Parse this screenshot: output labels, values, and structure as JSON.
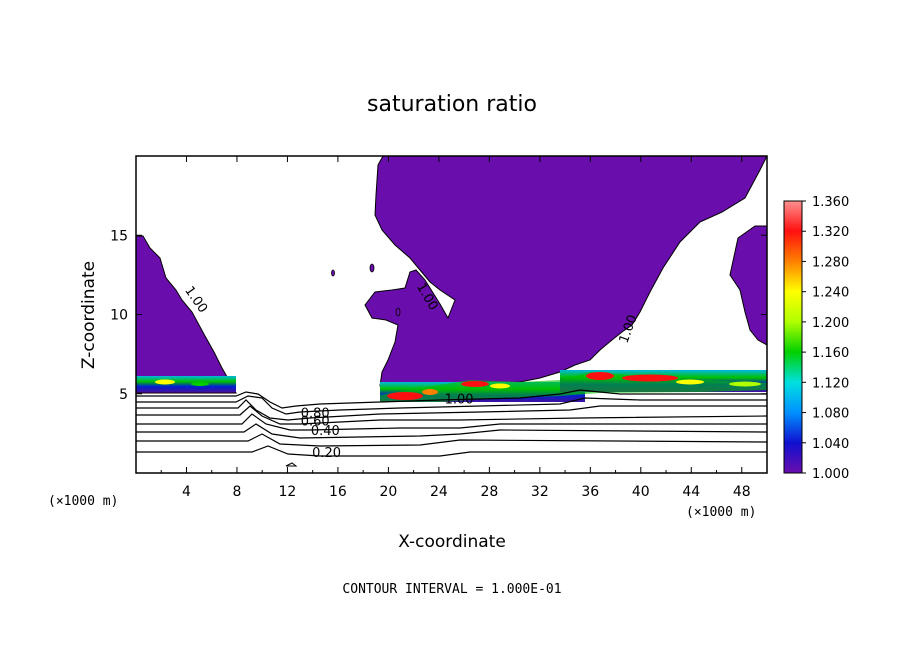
{
  "chart_data": {
    "type": "heatmap",
    "title": "saturation ratio",
    "xlabel": "X-coordinate",
    "ylabel": "Z-coordinate",
    "x_unit_label": "(×1000 m)",
    "y_unit_label": "(×1000 m)",
    "xlim": [
      0,
      50
    ],
    "ylim": [
      0,
      20
    ],
    "x_ticks": [
      4,
      8,
      12,
      16,
      20,
      24,
      28,
      32,
      36,
      40,
      44,
      48
    ],
    "x_tick_labels": [
      "4",
      "8",
      "12",
      "16",
      "20",
      "24",
      "28",
      "32",
      "36",
      "40",
      "44",
      "48"
    ],
    "y_ticks": [
      5,
      10,
      15
    ],
    "y_tick_labels": [
      "5",
      "10",
      "15"
    ],
    "colorbar": {
      "min": 1.0,
      "max": 1.36,
      "ticks": [
        1.0,
        1.04,
        1.08,
        1.12,
        1.16,
        1.2,
        1.24,
        1.28,
        1.32,
        1.36
      ],
      "tick_labels": [
        "1.000",
        "1.040",
        "1.080",
        "1.120",
        "1.160",
        "1.200",
        "1.240",
        "1.280",
        "1.320",
        "1.360"
      ],
      "colors": [
        "#6a0dad",
        "#1010d0",
        "#0090ff",
        "#00e0e0",
        "#00d000",
        "#b0ff00",
        "#ffff00",
        "#ff8000",
        "#ff1010",
        "#ff9090"
      ]
    },
    "contour_labels": [
      {
        "text": "1.00",
        "x": 4.5,
        "z": 10.8,
        "angle": 55
      },
      {
        "text": "1.00",
        "x": 22.8,
        "z": 11.0,
        "angle": 60
      },
      {
        "text": "1.00",
        "x": 39.3,
        "z": 9.0,
        "angle": -70
      },
      {
        "text": "1.00",
        "x": 25.6,
        "z": 4.4,
        "angle": 0
      },
      {
        "text": "0.80",
        "x": 14.2,
        "z": 3.5,
        "angle": 0
      },
      {
        "text": "0.60",
        "x": 14.2,
        "z": 3.0,
        "angle": 0
      },
      {
        "text": "0.40",
        "x": 15.0,
        "z": 2.4,
        "angle": 0
      },
      {
        "text": "0.20",
        "x": 15.1,
        "z": 1.0,
        "angle": 0
      }
    ],
    "footnote": "CONTOUR INTERVAL = 1.000E-01"
  }
}
